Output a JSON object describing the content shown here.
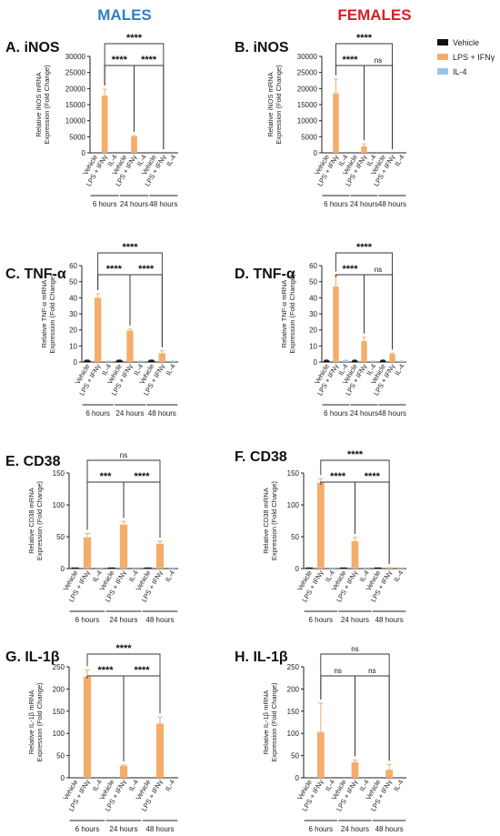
{
  "figure": {
    "col_headers": [
      {
        "text": "MALES",
        "color": "#2f7fc1"
      },
      {
        "text": "FEMALES",
        "color": "#d61f26"
      }
    ],
    "legend": [
      {
        "label": "Vehicle",
        "color": "#111111"
      },
      {
        "label": "LPS + IFNγ",
        "color": "#f5ad6b"
      },
      {
        "label": "IL-4",
        "color": "#9cc3e6"
      }
    ],
    "x_labels": [
      "Vehicle",
      "LPS + IFNγ",
      "IL-4"
    ],
    "groups": [
      "6 hours",
      "24 hours",
      "48 hours"
    ]
  },
  "chart_data": [
    {
      "type": "bar",
      "panel": "A. iNOS",
      "ylabel": [
        "Relative iNOS mRNA",
        "Expression (Fold Change)"
      ],
      "ylim": [
        0,
        30000
      ],
      "yticks": [
        0,
        5000,
        10000,
        15000,
        20000,
        25000,
        30000
      ],
      "categories": [
        "6 hours",
        "24 hours",
        "48 hours"
      ],
      "series": [
        {
          "name": "Vehicle",
          "values": [
            0,
            0,
            0
          ],
          "errors": [
            0,
            0,
            0
          ]
        },
        {
          "name": "LPS + IFNγ",
          "values": [
            17800,
            5100,
            0
          ],
          "errors": [
            2000,
            300,
            0
          ]
        },
        {
          "name": "IL-4",
          "values": [
            0,
            0,
            0
          ],
          "errors": [
            0,
            0,
            0
          ]
        }
      ],
      "significance": [
        {
          "from": [
            0,
            1
          ],
          "to": [
            1,
            1
          ],
          "label": "****",
          "level": 1
        },
        {
          "from": [
            1,
            1
          ],
          "to": [
            2,
            1
          ],
          "label": "****",
          "level": 1
        },
        {
          "from": [
            0,
            1
          ],
          "to": [
            2,
            1
          ],
          "label": "****",
          "level": 2
        }
      ]
    },
    {
      "type": "bar",
      "panel": "B. iNOS",
      "ylabel": [
        "Relative iNOS mRNA",
        "Expression (Fold Change)"
      ],
      "ylim": [
        0,
        30000
      ],
      "yticks": [
        0,
        5000,
        10000,
        15000,
        20000,
        25000,
        30000
      ],
      "categories": [
        "6 hours",
        "24 hours",
        "48 hours"
      ],
      "series": [
        {
          "name": "Vehicle",
          "values": [
            0,
            0,
            0
          ],
          "errors": [
            0,
            0,
            0
          ]
        },
        {
          "name": "LPS + IFNγ",
          "values": [
            18500,
            2000,
            0
          ],
          "errors": [
            4500,
            800,
            0
          ]
        },
        {
          "name": "IL-4",
          "values": [
            0,
            0,
            0
          ],
          "errors": [
            0,
            0,
            0
          ]
        }
      ],
      "significance": [
        {
          "from": [
            0,
            1
          ],
          "to": [
            1,
            1
          ],
          "label": "****",
          "level": 1
        },
        {
          "from": [
            1,
            1
          ],
          "to": [
            2,
            1
          ],
          "label": "ns",
          "level": 1
        },
        {
          "from": [
            0,
            1
          ],
          "to": [
            2,
            1
          ],
          "label": "****",
          "level": 2
        }
      ]
    },
    {
      "type": "bar",
      "panel": "C. TNF-α",
      "ylabel": [
        "Relative TNF-α mRNA",
        "Expression (Fold Change)"
      ],
      "ylim": [
        0,
        60
      ],
      "yticks": [
        0,
        10,
        20,
        30,
        40,
        50,
        60
      ],
      "categories": [
        "6 hours",
        "24 hours",
        "48 hours"
      ],
      "series": [
        {
          "name": "Vehicle",
          "values": [
            1,
            1,
            1
          ],
          "errors": [
            0.2,
            0.2,
            0.2
          ]
        },
        {
          "name": "LPS + IFNγ",
          "values": [
            40,
            19.5,
            5.5
          ],
          "errors": [
            2.5,
            1,
            1.5
          ]
        },
        {
          "name": "IL-4",
          "values": [
            0.5,
            0.5,
            0.5
          ],
          "errors": [
            0.1,
            0.1,
            0.1
          ]
        }
      ],
      "significance": [
        {
          "from": [
            0,
            1
          ],
          "to": [
            1,
            1
          ],
          "label": "****",
          "level": 1
        },
        {
          "from": [
            1,
            1
          ],
          "to": [
            2,
            1
          ],
          "label": "****",
          "level": 1
        },
        {
          "from": [
            0,
            1
          ],
          "to": [
            2,
            1
          ],
          "label": "****",
          "level": 2
        }
      ]
    },
    {
      "type": "bar",
      "panel": "D. TNF-α",
      "ylabel": [
        "Relative TNF-α mRNA",
        "Expression (Fold Change)"
      ],
      "ylim": [
        0,
        60
      ],
      "yticks": [
        0,
        10,
        20,
        30,
        40,
        50,
        60
      ],
      "categories": [
        "6 hours",
        "24 hours",
        "48 hours"
      ],
      "series": [
        {
          "name": "Vehicle",
          "values": [
            1,
            1,
            1
          ],
          "errors": [
            0.2,
            0.2,
            0.2
          ]
        },
        {
          "name": "LPS + IFNγ",
          "values": [
            47,
            13,
            5
          ],
          "errors": [
            7,
            2.5,
            0.5
          ]
        },
        {
          "name": "IL-4",
          "values": [
            1,
            0.5,
            0.5
          ],
          "errors": [
            0.2,
            0.1,
            0.1
          ]
        }
      ],
      "significance": [
        {
          "from": [
            0,
            1
          ],
          "to": [
            1,
            1
          ],
          "label": "****",
          "level": 1
        },
        {
          "from": [
            1,
            1
          ],
          "to": [
            2,
            1
          ],
          "label": "ns",
          "level": 1
        },
        {
          "from": [
            0,
            1
          ],
          "to": [
            2,
            1
          ],
          "label": "****",
          "level": 2
        }
      ]
    },
    {
      "type": "bar",
      "panel": "E. CD38",
      "ylabel": [
        "Relative CD38 mRNA",
        "Expression (Fold Change)"
      ],
      "ylim": [
        0,
        150
      ],
      "yticks": [
        0,
        50,
        100,
        150
      ],
      "categories": [
        "6 hours",
        "24 hours",
        "48 hours"
      ],
      "series": [
        {
          "name": "Vehicle",
          "values": [
            1,
            1,
            1
          ],
          "errors": [
            0,
            0,
            0
          ]
        },
        {
          "name": "LPS + IFNγ",
          "values": [
            49,
            69,
            39
          ],
          "errors": [
            6,
            5,
            4
          ]
        },
        {
          "name": "IL-4",
          "values": [
            0.5,
            0.5,
            0.5
          ],
          "errors": [
            0,
            0,
            0
          ]
        }
      ],
      "significance": [
        {
          "from": [
            0,
            1
          ],
          "to": [
            1,
            1
          ],
          "label": "***",
          "level": 1
        },
        {
          "from": [
            1,
            1
          ],
          "to": [
            2,
            1
          ],
          "label": "****",
          "level": 1
        },
        {
          "from": [
            0,
            1
          ],
          "to": [
            2,
            1
          ],
          "label": "ns",
          "level": 2
        }
      ]
    },
    {
      "type": "bar",
      "panel": "F. CD38",
      "ylabel": [
        "Relative CD38 mRNA",
        "Expression (Fold Change)"
      ],
      "ylim": [
        0,
        150
      ],
      "yticks": [
        0,
        50,
        100,
        150
      ],
      "categories": [
        "6 hours",
        "24 hours",
        "48 hours"
      ],
      "series": [
        {
          "name": "Vehicle",
          "values": [
            1,
            1,
            1
          ],
          "errors": [
            0,
            0,
            0
          ]
        },
        {
          "name": "LPS + IFNγ",
          "values": [
            135,
            43,
            1
          ],
          "errors": [
            6,
            6,
            0.5
          ]
        },
        {
          "name": "IL-4",
          "values": [
            0.5,
            0.5,
            0.5
          ],
          "errors": [
            0,
            0,
            0
          ]
        }
      ],
      "significance": [
        {
          "from": [
            0,
            1
          ],
          "to": [
            1,
            1
          ],
          "label": "****",
          "level": 1
        },
        {
          "from": [
            1,
            1
          ],
          "to": [
            2,
            1
          ],
          "label": "****",
          "level": 1
        },
        {
          "from": [
            0,
            1
          ],
          "to": [
            2,
            1
          ],
          "label": "****",
          "level": 2
        }
      ]
    },
    {
      "type": "bar",
      "panel": "G. IL-1β",
      "ylabel": [
        "Relative IL-1β mRNA",
        "Expression (Fold Change)"
      ],
      "ylim": [
        0,
        250
      ],
      "yticks": [
        0,
        50,
        100,
        150,
        200,
        250
      ],
      "categories": [
        "6 hours",
        "24 hours",
        "48 hours"
      ],
      "series": [
        {
          "name": "Vehicle",
          "values": [
            0,
            0,
            0
          ],
          "errors": [
            0,
            0,
            0
          ]
        },
        {
          "name": "LPS + IFNγ",
          "values": [
            228,
            27,
            122
          ],
          "errors": [
            15,
            2,
            15
          ]
        },
        {
          "name": "IL-4",
          "values": [
            0,
            0,
            0
          ],
          "errors": [
            0,
            0,
            0
          ]
        }
      ],
      "significance": [
        {
          "from": [
            0,
            1
          ],
          "to": [
            1,
            1
          ],
          "label": "****",
          "level": 1
        },
        {
          "from": [
            1,
            1
          ],
          "to": [
            2,
            1
          ],
          "label": "****",
          "level": 1
        },
        {
          "from": [
            0,
            1
          ],
          "to": [
            2,
            1
          ],
          "label": "****",
          "level": 2
        }
      ]
    },
    {
      "type": "bar",
      "panel": "H. IL-1β",
      "ylabel": [
        "Relative IL-1β mRNA",
        "Expression (Fold Change)"
      ],
      "ylim": [
        0,
        250
      ],
      "yticks": [
        0,
        50,
        100,
        150,
        200,
        250
      ],
      "categories": [
        "6 hours",
        "24 hours",
        "48 hours"
      ],
      "series": [
        {
          "name": "Vehicle",
          "values": [
            0,
            0,
            0
          ],
          "errors": [
            0,
            0,
            0
          ]
        },
        {
          "name": "LPS + IFNγ",
          "values": [
            103,
            35,
            18
          ],
          "errors": [
            65,
            5,
            12
          ]
        },
        {
          "name": "IL-4",
          "values": [
            0,
            0,
            0
          ],
          "errors": [
            0,
            0,
            0
          ]
        }
      ],
      "significance": [
        {
          "from": [
            0,
            1
          ],
          "to": [
            1,
            1
          ],
          "label": "ns",
          "level": 1
        },
        {
          "from": [
            1,
            1
          ],
          "to": [
            2,
            1
          ],
          "label": "ns",
          "level": 1
        },
        {
          "from": [
            0,
            1
          ],
          "to": [
            2,
            1
          ],
          "label": "ns",
          "level": 2
        }
      ]
    }
  ]
}
